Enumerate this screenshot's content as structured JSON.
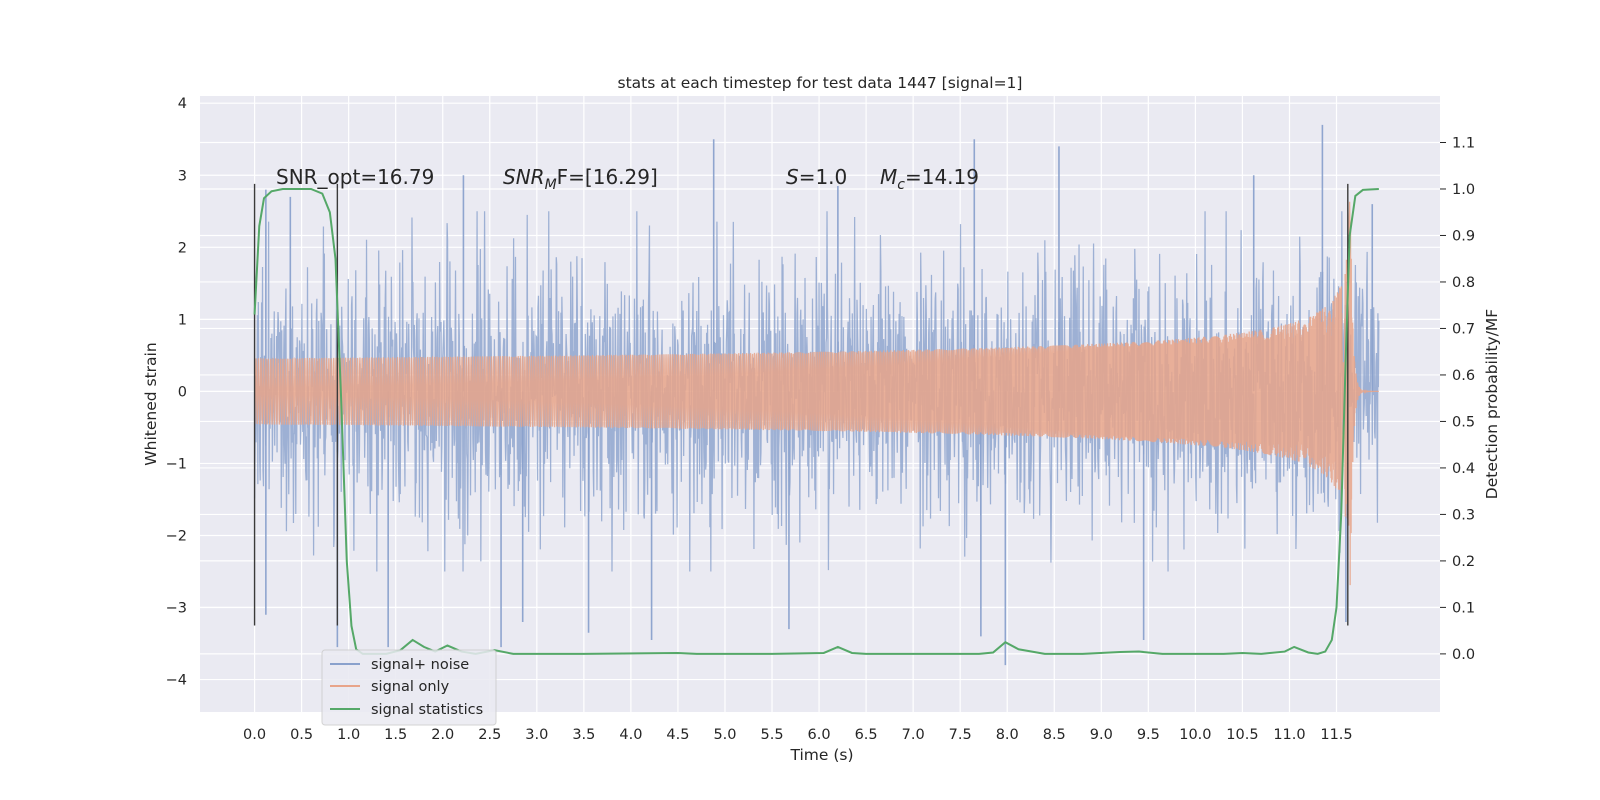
{
  "chart_data": {
    "type": "line",
    "title": "stats at each timestep for test data 1447 [signal=1]",
    "xlabel": "Time (s)",
    "ylabel": "Whitened strain",
    "y2label": "Detection probability/MF",
    "xlim": [
      -0.58,
      12.6
    ],
    "ylim": [
      -4.45,
      4.1
    ],
    "y2lim": [
      -0.125,
      1.2
    ],
    "xticks": [
      0.0,
      0.5,
      1.0,
      1.5,
      2.0,
      2.5,
      3.0,
      3.5,
      4.0,
      4.5,
      5.0,
      5.5,
      6.0,
      6.5,
      7.0,
      7.5,
      8.0,
      8.5,
      9.0,
      9.5,
      10.0,
      10.5,
      11.0,
      11.5
    ],
    "xtick_labels": [
      "0.0",
      "0.5",
      "1.0",
      "1.5",
      "2.0",
      "2.5",
      "3.0",
      "3.5",
      "4.0",
      "4.5",
      "5.0",
      "5.5",
      "6.0",
      "6.5",
      "7.0",
      "7.5",
      "8.0",
      "8.5",
      "9.0",
      "9.5",
      "10.0",
      "10.5",
      "11.0",
      "11.5"
    ],
    "yticks": [
      -4,
      -3,
      -2,
      -1,
      0,
      1,
      2,
      3,
      4
    ],
    "ytick_labels": [
      "−4",
      "−3",
      "−2",
      "−1",
      "0",
      "1",
      "2",
      "3",
      "4"
    ],
    "y2ticks": [
      0.0,
      0.1,
      0.2,
      0.3,
      0.4,
      0.5,
      0.6,
      0.7,
      0.8,
      0.9,
      1.0,
      1.1
    ],
    "y2tick_labels": [
      "0.0",
      "0.1",
      "0.2",
      "0.3",
      "0.4",
      "0.5",
      "0.6",
      "0.7",
      "0.8",
      "0.9",
      "1.0",
      "1.1"
    ],
    "grid": true,
    "legend_position": "lower-left",
    "annotations": [
      "SNR_opt=16.79",
      "SNR",
      "M",
      "F=[16.29]",
      "S",
      "=1.0",
      "M",
      "c",
      "=14.19"
    ],
    "vertical_lines_x": [
      0.0,
      0.88,
      11.62
    ],
    "series": [
      {
        "name": "signal+ noise",
        "color": "#8aa1cc",
        "axis": "left",
        "time_range": [
          0.0,
          11.95
        ],
        "envelope_note_values": {
          "typical_max": 2.0,
          "peak_max": 3.7,
          "typical_min": -2.0,
          "peak_min": -3.85
        },
        "peaks": [
          {
            "t": 0.12,
            "v": 2.8
          },
          {
            "t": 0.38,
            "v": 2.7
          },
          {
            "t": 0.88,
            "v": -3.55
          },
          {
            "t": 0.12,
            "v": -3.1
          },
          {
            "t": 1.42,
            "v": -3.55
          },
          {
            "t": 2.22,
            "v": 3.0
          },
          {
            "t": 2.62,
            "v": -3.55
          },
          {
            "t": 2.85,
            "v": -3.2
          },
          {
            "t": 3.55,
            "v": -3.35
          },
          {
            "t": 4.22,
            "v": -3.45
          },
          {
            "t": 4.88,
            "v": 3.5
          },
          {
            "t": 5.68,
            "v": -3.3
          },
          {
            "t": 6.2,
            "v": 2.85
          },
          {
            "t": 7.65,
            "v": 3.5
          },
          {
            "t": 7.72,
            "v": -3.4
          },
          {
            "t": 7.98,
            "v": -3.8
          },
          {
            "t": 8.55,
            "v": 3.4
          },
          {
            "t": 9.45,
            "v": -3.45
          },
          {
            "t": 10.62,
            "v": 3.0
          },
          {
            "t": 11.35,
            "v": 3.7
          },
          {
            "t": 11.6,
            "v": -3.2
          },
          {
            "t": 11.88,
            "v": 2.6
          }
        ]
      },
      {
        "name": "signal only",
        "color": "#e8a48a",
        "axis": "left",
        "time_range": [
          0.0,
          11.95
        ],
        "merger_time": 11.65,
        "peak_amplitude": 3.55
      },
      {
        "name": "signal statistics",
        "color": "#55a868",
        "axis": "right",
        "points": [
          [
            0.0,
            0.73
          ],
          [
            0.05,
            0.92
          ],
          [
            0.1,
            0.98
          ],
          [
            0.18,
            0.995
          ],
          [
            0.3,
            1.0
          ],
          [
            0.6,
            1.0
          ],
          [
            0.72,
            0.99
          ],
          [
            0.8,
            0.95
          ],
          [
            0.86,
            0.85
          ],
          [
            0.92,
            0.55
          ],
          [
            0.98,
            0.2
          ],
          [
            1.03,
            0.06
          ],
          [
            1.08,
            0.01
          ],
          [
            1.15,
            0.0
          ],
          [
            1.4,
            0.0
          ],
          [
            1.55,
            0.008
          ],
          [
            1.68,
            0.03
          ],
          [
            1.8,
            0.015
          ],
          [
            1.92,
            0.005
          ],
          [
            2.05,
            0.018
          ],
          [
            2.2,
            0.005
          ],
          [
            2.35,
            0.0
          ],
          [
            2.55,
            0.008
          ],
          [
            2.75,
            0.0
          ],
          [
            3.5,
            0.0
          ],
          [
            4.5,
            0.002
          ],
          [
            4.7,
            0.0
          ],
          [
            5.5,
            0.0
          ],
          [
            6.05,
            0.002
          ],
          [
            6.2,
            0.015
          ],
          [
            6.35,
            0.002
          ],
          [
            6.5,
            0.0
          ],
          [
            7.7,
            0.0
          ],
          [
            7.85,
            0.003
          ],
          [
            7.98,
            0.025
          ],
          [
            8.12,
            0.01
          ],
          [
            8.4,
            0.0
          ],
          [
            8.8,
            0.0
          ],
          [
            9.2,
            0.004
          ],
          [
            9.4,
            0.005
          ],
          [
            9.65,
            0.0
          ],
          [
            10.3,
            0.0
          ],
          [
            10.5,
            0.002
          ],
          [
            10.7,
            0.0
          ],
          [
            10.95,
            0.005
          ],
          [
            11.05,
            0.015
          ],
          [
            11.2,
            0.003
          ],
          [
            11.3,
            0.0
          ],
          [
            11.38,
            0.005
          ],
          [
            11.45,
            0.03
          ],
          [
            11.5,
            0.1
          ],
          [
            11.55,
            0.3
          ],
          [
            11.6,
            0.65
          ],
          [
            11.64,
            0.9
          ],
          [
            11.7,
            0.985
          ],
          [
            11.78,
            0.998
          ],
          [
            11.95,
            1.0
          ]
        ]
      }
    ]
  }
}
